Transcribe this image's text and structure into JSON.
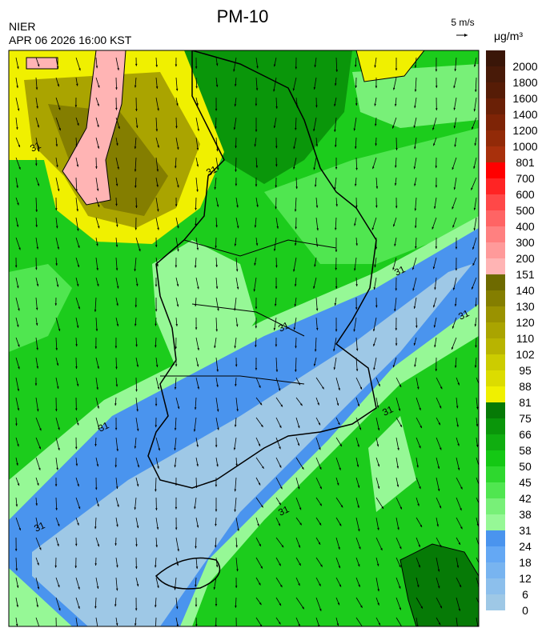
{
  "header": {
    "title": "PM-10",
    "agency": "NIER",
    "datetime": "APR 06 2026 16:00 KST",
    "wind_scale": "5 m/s",
    "unit": "μg/m³"
  },
  "colorbar": {
    "levels": [
      0,
      6,
      12,
      18,
      24,
      31,
      38,
      42,
      45,
      50,
      58,
      66,
      75,
      81,
      88,
      95,
      102,
      110,
      120,
      130,
      140,
      151,
      200,
      300,
      400,
      500,
      600,
      700,
      801,
      1000,
      1200,
      1400,
      1600,
      1800,
      2000
    ],
    "colors": [
      "#9ec8e6",
      "#8cbfec",
      "#78b4f0",
      "#64a8f4",
      "#4a94ee",
      "#96f896",
      "#78f078",
      "#50e650",
      "#2ed82e",
      "#14c814",
      "#10ae10",
      "#0a960a",
      "#067a06",
      "#f0f000",
      "#dcdc00",
      "#cccc00",
      "#b8b400",
      "#aaa400",
      "#9a9200",
      "#847e00",
      "#6e6a00",
      "#ffb4b4",
      "#ff9a9a",
      "#ff8080",
      "#ff6464",
      "#ff4848",
      "#ff2424",
      "#ff0000",
      "#a8300c",
      "#922a08",
      "#7e2406",
      "#6a2006",
      "#561c06",
      "#481a08",
      "#3a1608"
    ]
  },
  "map": {
    "contour_labels": [
      "31",
      "31",
      "31",
      "31",
      "31",
      "31",
      "31",
      "31",
      "31"
    ]
  }
}
